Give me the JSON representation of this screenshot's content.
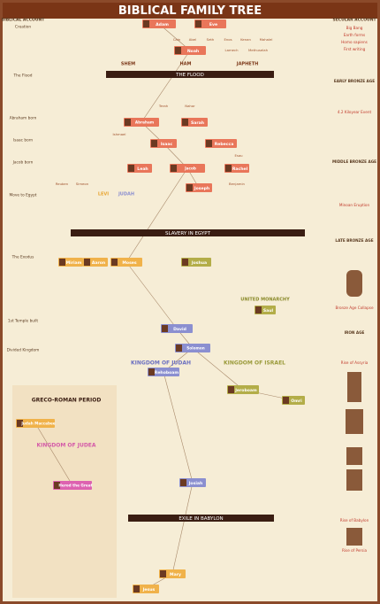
{
  "header": {
    "title": "BIBLICAL FAMILY TREE"
  },
  "left_timeline": {
    "heading": "BIBLICAL ACCOUNT",
    "events": [
      "Creation",
      "The Flood",
      "Abraham born",
      "Isaac born",
      "Jacob born",
      "Move to Egypt",
      "The Exodus",
      "1st Temple built",
      "Divided Kingdom"
    ]
  },
  "right_timeline": {
    "heading": "SECULAR ACCOUNT",
    "events": [
      "Big Bang",
      "Earth forms",
      "Homo sapiens",
      "First writing",
      "EARLY BRONZE AGE",
      "4.2 Kiloyear Event",
      "MIDDLE BRONZE AGE",
      "Minoan Eruption",
      "LATE BRONZE AGE",
      "Bronze Age Collapse",
      "IRON AGE",
      "Rise of Assyria",
      "Rise of Babylon",
      "Rise of Persia"
    ]
  },
  "banners": [
    "THE FLOOD",
    "SLAVERY IN EGYPT",
    "EXILE IN BABYLON"
  ],
  "sections": [
    "SHEM",
    "HAM",
    "JAPHETH",
    "LEVI",
    "JUDAH",
    "UNITED MONARCHY",
    "KINGDOM OF JUDAH",
    "KINGDOM OF ISRAEL",
    "GRECO-ROMAN PERIOD",
    "KINGDOM OF JUDEA"
  ],
  "nodes": [
    "Adam",
    "Eve",
    "Noah",
    "Abraham",
    "Sarah",
    "Isaac",
    "Rebecca",
    "Leah",
    "Jacob",
    "Rachel",
    "Joseph",
    "Miriam",
    "Aaron",
    "Moses",
    "Joshua",
    "Saul",
    "David",
    "Solomon",
    "Rehoboam",
    "Jeroboam",
    "Omri",
    "Josiah",
    "Judah Maccabee",
    "Herod the Great",
    "Mary",
    "Jesus"
  ],
  "names": [
    "Cain",
    "Abel",
    "Seth",
    "Enos",
    "Kenan",
    "Mahalel",
    "Lamech",
    "Methuselah",
    "Terah",
    "Nahor",
    "Ishmael",
    "Esau",
    "Reuben",
    "Simeon",
    "Benjamin"
  ]
}
